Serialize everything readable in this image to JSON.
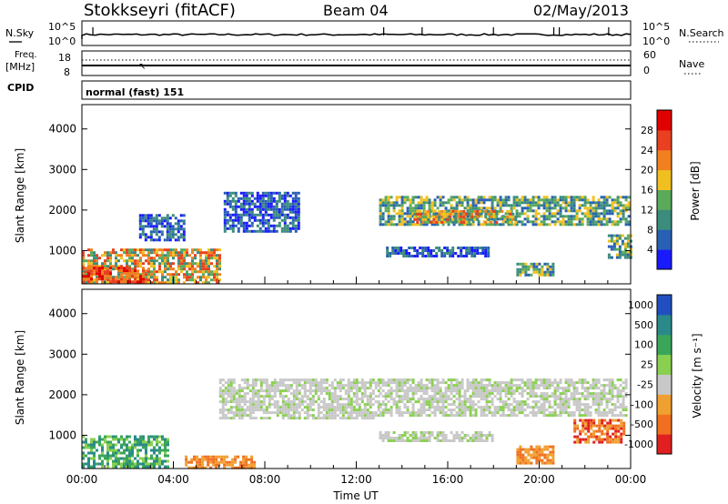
{
  "header": {
    "station": "Stokkseyri (fitACF)",
    "beam": "Beam 04",
    "date": "02/May/2013"
  },
  "strip_labels": {
    "nsky": "N.Sky",
    "nsearch": "N.Search",
    "freq": "Freq.",
    "freq_unit": "[MHz]",
    "nave": "Nave",
    "cpid": "CPID",
    "cpid_text": "normal (fast) 151",
    "nsky_ticks": [
      "10^5",
      "10^0"
    ],
    "nsearch_ticks": [
      "10^5",
      "10^0"
    ],
    "freq_ticks": [
      "18",
      "8"
    ],
    "nave_ticks": [
      "60",
      "0"
    ]
  },
  "chart_data": [
    {
      "type": "heatmap",
      "name": "power",
      "ylabel": "Slant Range [km]",
      "xlabel": "",
      "ylim": [
        180,
        4600
      ],
      "yticks": [
        "1000",
        "2000",
        "3000",
        "4000"
      ],
      "colorbar": {
        "label": "Power [dB]",
        "ticks": [
          "4",
          "8",
          "12",
          "16",
          "20",
          "24",
          "28"
        ],
        "colors": [
          "#1a1aff",
          "#2860b4",
          "#3b8c7c",
          "#5aaa5a",
          "#f0c020",
          "#f08020",
          "#e84020",
          "#e00000"
        ]
      },
      "regions": [
        {
          "t": [
            0.0,
            6.0
          ],
          "r": [
            200,
            1050
          ],
          "level": "high"
        },
        {
          "t": [
            0.0,
            2.8
          ],
          "r": [
            200,
            600
          ],
          "level": "peak"
        },
        {
          "t": [
            2.5,
            4.5
          ],
          "r": [
            1250,
            1900
          ],
          "level": "low"
        },
        {
          "t": [
            6.2,
            9.5
          ],
          "r": [
            1450,
            2450
          ],
          "level": "low"
        },
        {
          "t": [
            13.0,
            23.9
          ],
          "r": [
            1650,
            2350
          ],
          "level": "mid"
        },
        {
          "t": [
            14.5,
            19.0
          ],
          "r": [
            1700,
            2000
          ],
          "level": "high"
        },
        {
          "t": [
            13.3,
            17.8
          ],
          "r": [
            880,
            1100
          ],
          "level": "low"
        },
        {
          "t": [
            19.0,
            20.6
          ],
          "r": [
            380,
            700
          ],
          "level": "mid"
        },
        {
          "t": [
            23.0,
            24.0
          ],
          "r": [
            800,
            1400
          ],
          "level": "mid"
        }
      ]
    },
    {
      "type": "heatmap",
      "name": "velocity",
      "ylabel": "Slant Range [km]",
      "xlabel": "Time UT",
      "ylim": [
        180,
        4600
      ],
      "yticks": [
        "1000",
        "2000",
        "3000",
        "4000"
      ],
      "xticks": [
        "00:00",
        "04:00",
        "08:00",
        "12:00",
        "16:00",
        "20:00",
        "00:00"
      ],
      "colorbar": {
        "label": "Velocity [m s⁻¹]",
        "ticks": [
          "1000",
          "500",
          "100",
          "25",
          "-25",
          "-100",
          "-500",
          "-1000"
        ],
        "colors": [
          "#2050c0",
          "#2a8a8a",
          "#3aa65a",
          "#8ad050",
          "#c8c8c8",
          "#f0a030",
          "#f07020",
          "#e02020"
        ]
      },
      "regions": [
        {
          "t": [
            0.0,
            3.8
          ],
          "r": [
            200,
            1000
          ],
          "class": "green"
        },
        {
          "t": [
            4.5,
            7.5
          ],
          "r": [
            200,
            500
          ],
          "class": "orange"
        },
        {
          "t": [
            6.0,
            13.0
          ],
          "r": [
            1400,
            2400
          ],
          "class": "grey"
        },
        {
          "t": [
            13.0,
            23.8
          ],
          "r": [
            1500,
            2400
          ],
          "class": "grey"
        },
        {
          "t": [
            13.0,
            18.0
          ],
          "r": [
            850,
            1100
          ],
          "class": "grey"
        },
        {
          "t": [
            19.0,
            20.6
          ],
          "r": [
            300,
            750
          ],
          "class": "orange"
        },
        {
          "t": [
            21.5,
            23.7
          ],
          "r": [
            800,
            1400
          ],
          "class": "red"
        }
      ]
    }
  ]
}
